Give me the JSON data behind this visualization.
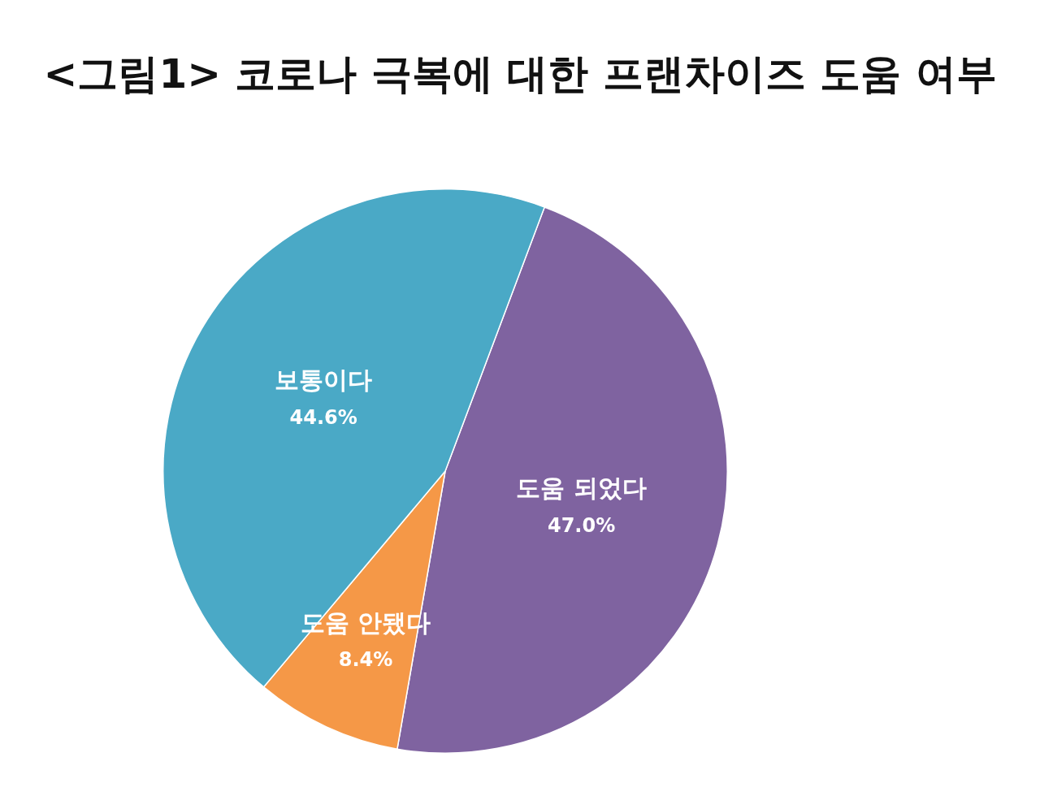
{
  "chart_data": {
    "type": "pie",
    "title": "<그림1> 코로나 극복에 대한 프랜차이즈 도움 여부",
    "categories": [
      "도움 되었다",
      "도움 안됐다",
      "보통이다"
    ],
    "values": [
      47.0,
      8.4,
      44.6
    ],
    "colors": [
      "#7f63a0",
      "#f59847",
      "#4aa9c6"
    ],
    "value_labels": [
      "47.0%",
      "8.4%",
      "44.6%"
    ],
    "legend": false
  }
}
